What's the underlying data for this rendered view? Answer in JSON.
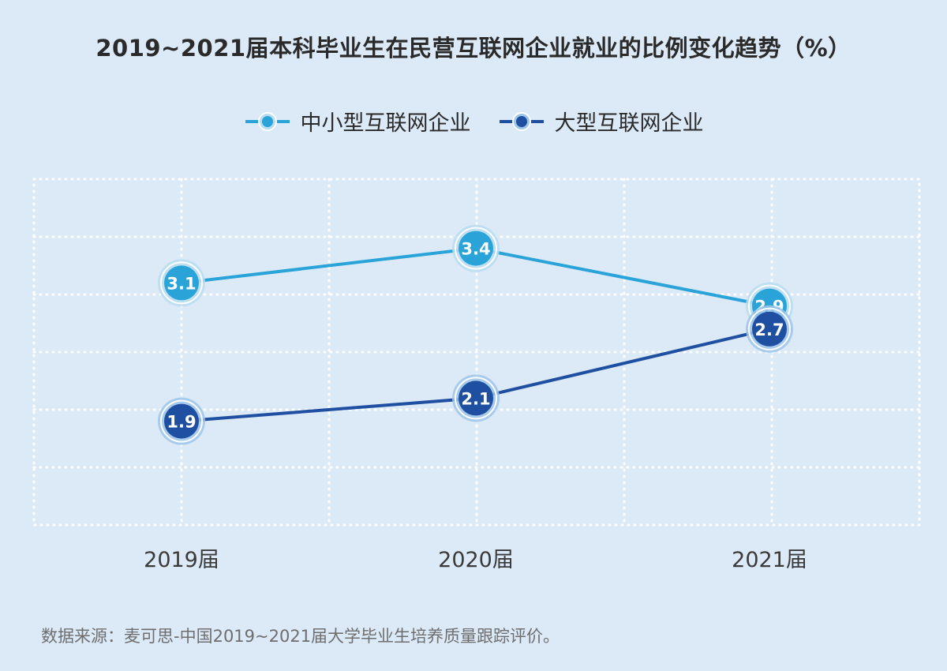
{
  "chart_data": {
    "type": "line",
    "title": "2019~2021届本科毕业生在民营互联网企业就业的比例变化趋势（%）",
    "categories": [
      "2019届",
      "2020届",
      "2021届"
    ],
    "series": [
      {
        "name": "中小型互联网企业",
        "values": [
          3.1,
          3.4,
          2.9
        ],
        "labels": [
          "3.1",
          "3.4",
          "2.9"
        ],
        "color": "#29a3d8"
      },
      {
        "name": "大型互联网企业",
        "values": [
          1.9,
          2.1,
          2.7
        ],
        "labels": [
          "1.9",
          "2.1",
          "2.7"
        ],
        "color": "#1f4fa0"
      }
    ],
    "ylim": [
      1.0,
      4.0
    ],
    "grid": true,
    "legend_position": "top-center",
    "xlabel": "",
    "ylabel": ""
  },
  "source": "数据来源：麦可思-中国2019~2021届大学毕业生培养质量跟踪评价。"
}
